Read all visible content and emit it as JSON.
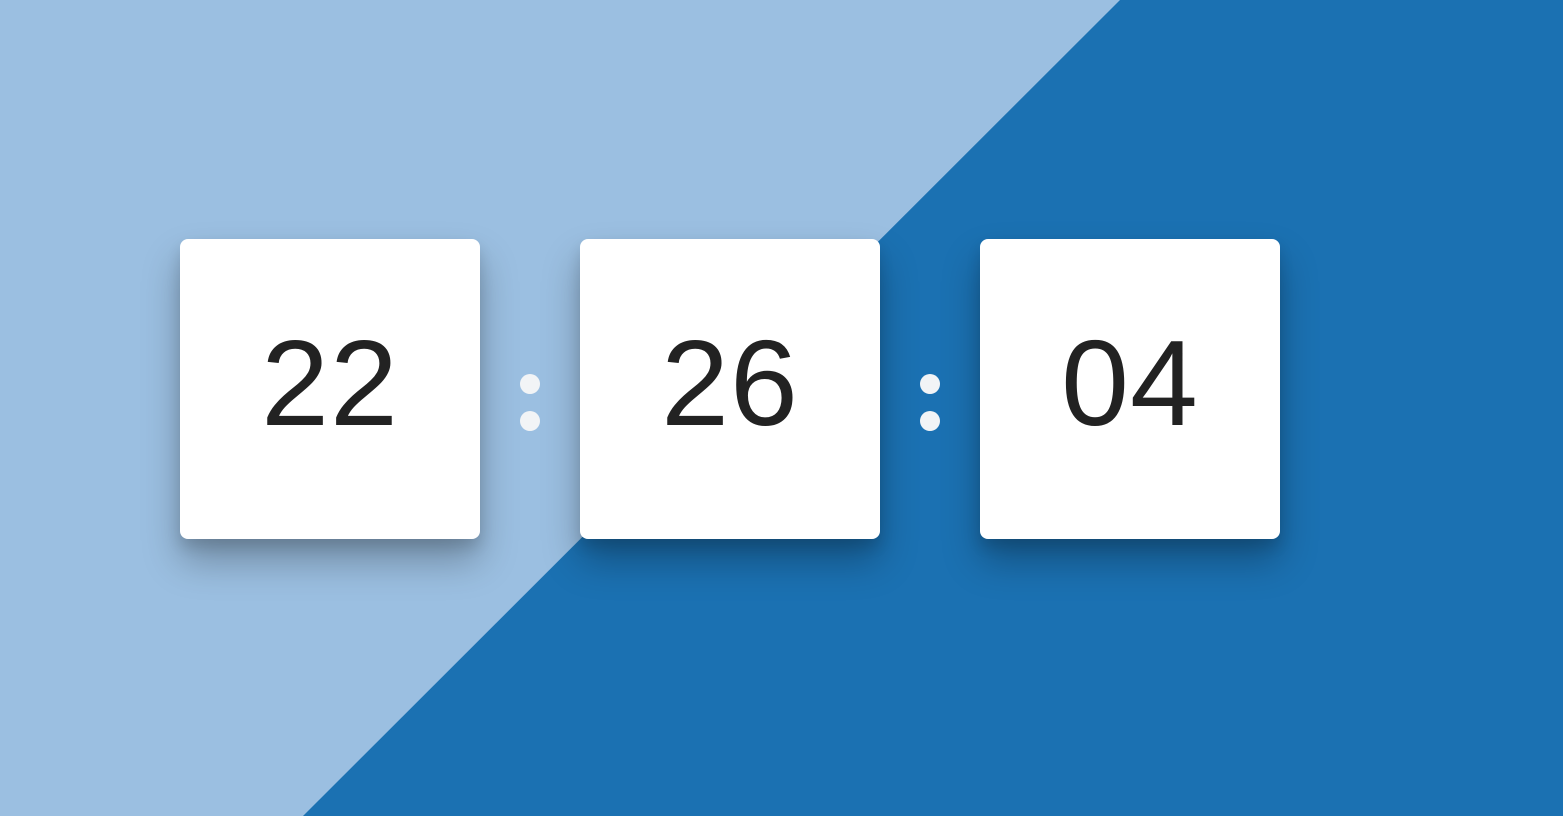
{
  "clock": {
    "hours": "22",
    "minutes": "26",
    "seconds": "04"
  },
  "colors": {
    "background_light": "#9bbfe1",
    "background_dark": "#1b71b2",
    "card": "#ffffff",
    "digit_text": "#222222",
    "separator_dot": "#f2f4f6"
  }
}
